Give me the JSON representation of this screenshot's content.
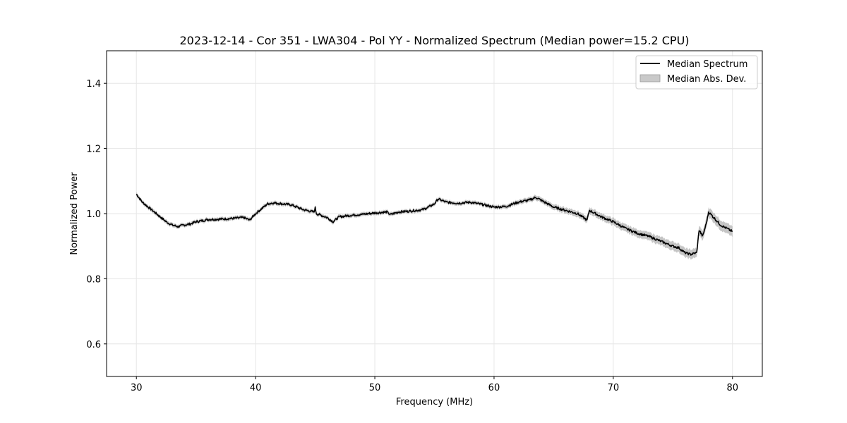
{
  "chart_data": {
    "type": "line",
    "title": "2023-12-14 - Cor 351 - LWA304 - Pol YY - Normalized Spectrum (Median power=15.2 CPU)",
    "xlabel": "Frequency (MHz)",
    "ylabel": "Normalized Power",
    "xlim": [
      27.5,
      82.5
    ],
    "ylim": [
      0.5,
      1.5
    ],
    "xticks": [
      30,
      40,
      50,
      60,
      70,
      80
    ],
    "yticks": [
      0.6,
      0.8,
      1.0,
      1.2,
      1.4
    ],
    "xtick_labels": [
      "30",
      "40",
      "50",
      "60",
      "70",
      "80"
    ],
    "ytick_labels": [
      "0.6",
      "0.8",
      "1.0",
      "1.2",
      "1.4"
    ],
    "grid": true,
    "legend_position": "top-right",
    "legend": [
      {
        "label": "Median Spectrum",
        "kind": "line",
        "color": "#000000"
      },
      {
        "label": "Median Abs. Dev.",
        "kind": "band",
        "color": "#bfbfbf"
      }
    ],
    "series": [
      {
        "name": "Median Spectrum",
        "color": "#000000",
        "x": [
          30.0,
          30.5,
          31.0,
          31.5,
          32.0,
          32.5,
          33.0,
          33.5,
          34.0,
          34.5,
          35.0,
          35.5,
          36.0,
          37.0,
          38.0,
          39.0,
          39.5,
          40.0,
          40.5,
          41.0,
          41.5,
          42.0,
          43.0,
          44.0,
          44.9,
          45.0,
          45.1,
          46.0,
          46.5,
          47.0,
          48.0,
          49.0,
          50.0,
          51.0,
          51.3,
          52.0,
          53.0,
          54.0,
          54.5,
          55.0,
          55.3,
          56.0,
          57.0,
          58.0,
          59.0,
          60.0,
          61.0,
          62.0,
          63.0,
          63.5,
          64.0,
          65.0,
          66.0,
          67.0,
          67.8,
          68.0,
          69.0,
          70.0,
          71.0,
          72.0,
          73.0,
          74.0,
          75.0,
          75.5,
          76.0,
          76.5,
          77.0,
          77.2,
          77.5,
          77.8,
          78.0,
          78.5,
          79.0,
          79.5,
          80.0
        ],
        "y": [
          1.06,
          1.035,
          1.02,
          1.005,
          0.99,
          0.975,
          0.965,
          0.96,
          0.965,
          0.968,
          0.975,
          0.978,
          0.982,
          0.983,
          0.985,
          0.988,
          0.98,
          1.0,
          1.015,
          1.03,
          1.033,
          1.031,
          1.027,
          1.012,
          1.005,
          1.018,
          1.0,
          0.988,
          0.975,
          0.99,
          0.995,
          0.998,
          1.002,
          1.005,
          0.997,
          1.005,
          1.008,
          1.012,
          1.02,
          1.03,
          1.045,
          1.035,
          1.032,
          1.035,
          1.028,
          1.02,
          1.022,
          1.035,
          1.042,
          1.05,
          1.04,
          1.02,
          1.01,
          1.0,
          0.98,
          1.01,
          0.99,
          0.975,
          0.955,
          0.94,
          0.93,
          0.915,
          0.9,
          0.895,
          0.88,
          0.875,
          0.88,
          0.95,
          0.93,
          0.97,
          1.005,
          0.985,
          0.965,
          0.955,
          0.945
        ]
      }
    ],
    "mad_band_halfwidth": 0.006
  }
}
